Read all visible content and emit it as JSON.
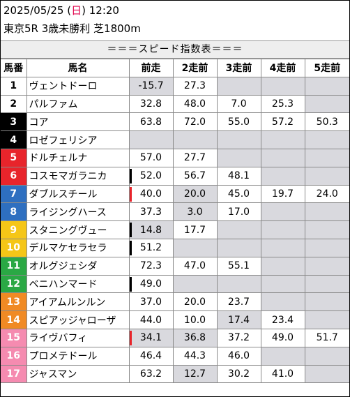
{
  "header": {
    "date": "2025/05/25",
    "dow_open": " (",
    "dow": "日",
    "dow_close": ")",
    "time": " 12:20",
    "race": "東京5R 3歳未勝利 芝1800m"
  },
  "title": "＝＝＝スピード指数表＝＝＝",
  "columns": [
    "馬番",
    "馬名",
    "前走",
    "2走前",
    "3走前",
    "4走前",
    "5走前"
  ],
  "colors": {
    "frame_white": "#ffffff",
    "frame_black": "#000000",
    "frame_red": "#e8242b",
    "frame_blue": "#2e6fc0",
    "frame_yellow": "#f5c617",
    "frame_green": "#2aa844",
    "frame_orange": "#f08a24",
    "frame_pink": "#f58bb0",
    "missing_cell": "#d9d9de",
    "tick_black": "#000000",
    "tick_red": "#e8242b"
  },
  "rows": [
    {
      "no": "1",
      "name": "ヴェントドーロ",
      "frame": "white",
      "tick": "",
      "v": [
        "-15.7",
        "27.3",
        "",
        "",
        ""
      ],
      "gray": [
        true,
        false,
        true,
        true,
        true
      ]
    },
    {
      "no": "2",
      "name": "パルファム",
      "frame": "white",
      "tick": "",
      "v": [
        "32.8",
        "48.0",
        "7.0",
        "25.3",
        ""
      ],
      "gray": [
        false,
        false,
        false,
        false,
        true
      ]
    },
    {
      "no": "3",
      "name": "コア",
      "frame": "black",
      "tick": "",
      "v": [
        "63.8",
        "72.0",
        "55.0",
        "57.2",
        "50.3"
      ],
      "gray": [
        false,
        false,
        false,
        false,
        false
      ]
    },
    {
      "no": "4",
      "name": "ロゼフェリシア",
      "frame": "black",
      "tick": "",
      "v": [
        "",
        "",
        "",
        "",
        ""
      ],
      "gray": [
        true,
        true,
        true,
        true,
        true
      ]
    },
    {
      "no": "5",
      "name": "ドルチェルナ",
      "frame": "red",
      "tick": "",
      "v": [
        "57.0",
        "27.7",
        "",
        "",
        ""
      ],
      "gray": [
        false,
        false,
        true,
        true,
        true
      ]
    },
    {
      "no": "6",
      "name": "コスモマガラニカ",
      "frame": "red",
      "tick": "black",
      "v": [
        "52.0",
        "56.7",
        "48.1",
        "",
        ""
      ],
      "gray": [
        false,
        false,
        false,
        true,
        true
      ]
    },
    {
      "no": "7",
      "name": "ダブルスチール",
      "frame": "blue",
      "tick": "red",
      "v": [
        "40.0",
        "20.0",
        "45.0",
        "19.7",
        "24.0"
      ],
      "gray": [
        false,
        true,
        false,
        false,
        false
      ]
    },
    {
      "no": "8",
      "name": "ライジングハース",
      "frame": "blue",
      "tick": "",
      "v": [
        "37.3",
        "3.0",
        "17.0",
        "",
        ""
      ],
      "gray": [
        false,
        true,
        false,
        true,
        true
      ]
    },
    {
      "no": "9",
      "name": "スタニングヴュー",
      "frame": "yellow",
      "tick": "black",
      "v": [
        "14.8",
        "17.7",
        "",
        "",
        ""
      ],
      "gray": [
        true,
        false,
        true,
        true,
        true
      ]
    },
    {
      "no": "10",
      "name": "デルマケセラセラ",
      "frame": "yellow",
      "tick": "black",
      "v": [
        "51.2",
        "",
        "",
        "",
        ""
      ],
      "gray": [
        false,
        true,
        true,
        true,
        true
      ]
    },
    {
      "no": "11",
      "name": "オルグジェシダ",
      "frame": "green",
      "tick": "",
      "v": [
        "72.3",
        "47.0",
        "55.1",
        "",
        ""
      ],
      "gray": [
        false,
        false,
        false,
        true,
        true
      ]
    },
    {
      "no": "12",
      "name": "ベニハンマード",
      "frame": "green",
      "tick": "black",
      "v": [
        "49.0",
        "",
        "",
        "",
        ""
      ],
      "gray": [
        false,
        true,
        true,
        true,
        true
      ]
    },
    {
      "no": "13",
      "name": "アイアムルンルン",
      "frame": "orange",
      "tick": "",
      "v": [
        "37.0",
        "20.0",
        "23.7",
        "",
        ""
      ],
      "gray": [
        false,
        false,
        false,
        true,
        true
      ]
    },
    {
      "no": "14",
      "name": "スピアッジャローザ",
      "frame": "orange",
      "tick": "",
      "v": [
        "44.0",
        "10.0",
        "17.4",
        "23.4",
        ""
      ],
      "gray": [
        false,
        false,
        true,
        false,
        true
      ]
    },
    {
      "no": "15",
      "name": "ライヴバフィ",
      "frame": "pink",
      "tick": "red",
      "v": [
        "34.1",
        "36.8",
        "37.2",
        "49.0",
        "51.7"
      ],
      "gray": [
        true,
        true,
        false,
        false,
        false
      ]
    },
    {
      "no": "16",
      "name": "プロメテドール",
      "frame": "pink",
      "tick": "",
      "v": [
        "46.4",
        "44.3",
        "46.0",
        "",
        ""
      ],
      "gray": [
        false,
        false,
        false,
        true,
        true
      ]
    },
    {
      "no": "17",
      "name": "ジャスマン",
      "frame": "pink",
      "tick": "",
      "v": [
        "63.2",
        "12.7",
        "30.2",
        "41.0",
        ""
      ],
      "gray": [
        false,
        true,
        false,
        false,
        true
      ]
    }
  ]
}
